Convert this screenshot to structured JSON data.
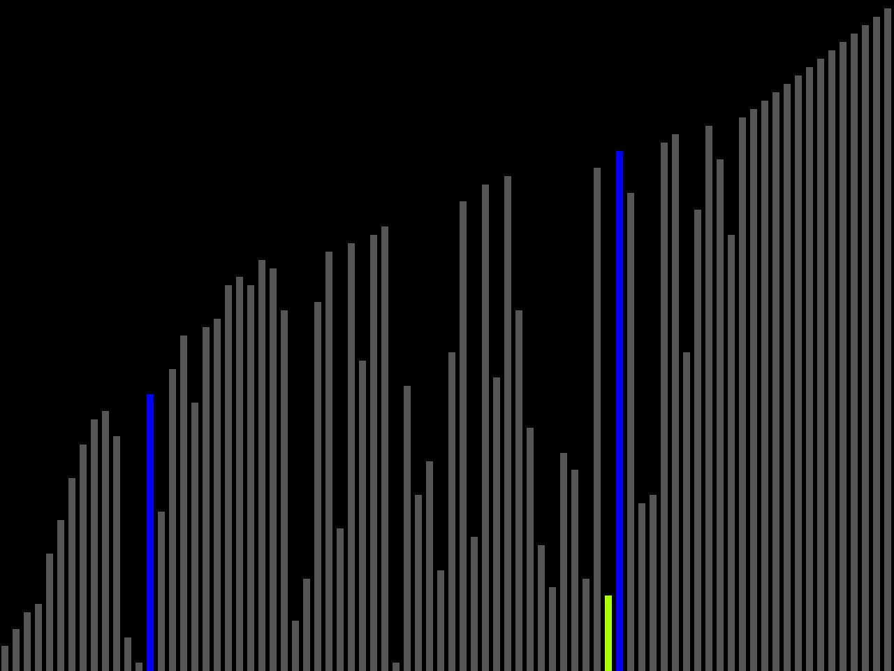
{
  "chart_data": {
    "type": "bar",
    "title": "",
    "xlabel": "",
    "ylabel": "",
    "grid": false,
    "legend": "none",
    "ylim": [
      0,
      80
    ],
    "bar_count": 80,
    "colors": {
      "background": "#000000",
      "default": "#555555",
      "compare": "#0000ff",
      "pivot": "#aaff00"
    },
    "values": [
      3,
      5,
      7,
      8,
      14,
      18,
      23,
      27,
      30,
      31,
      28,
      4,
      1,
      33,
      19,
      36,
      40,
      32,
      41,
      42,
      46,
      47,
      46,
      49,
      48,
      43,
      6,
      11,
      44,
      50,
      17,
      51,
      37,
      52,
      53,
      1,
      34,
      21,
      25,
      12,
      38,
      56,
      16,
      58,
      35,
      59,
      43,
      29,
      15,
      10,
      26,
      24,
      11,
      60,
      9,
      62,
      57,
      20,
      21,
      63,
      64,
      38,
      55,
      65,
      61,
      52,
      66,
      67,
      68,
      69,
      70,
      71,
      72,
      73,
      74,
      75,
      76,
      77,
      78,
      79
    ],
    "highlights": [
      {
        "index": 13,
        "role": "compare"
      },
      {
        "index": 54,
        "role": "pivot"
      },
      {
        "index": 55,
        "role": "compare"
      }
    ]
  }
}
